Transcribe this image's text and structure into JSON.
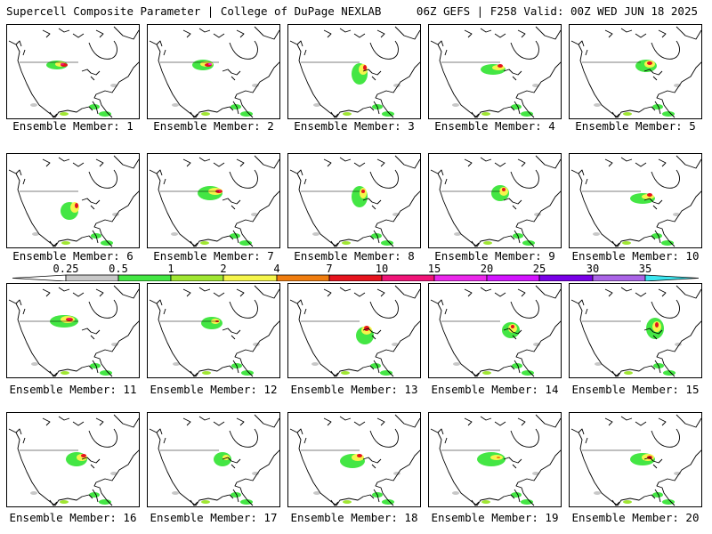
{
  "header": {
    "title": "Supercell Composite Parameter | College of DuPage NEXLAB",
    "run_info": "06Z GEFS | F258 Valid: 00Z WED JUN 18 2025"
  },
  "colorbar": {
    "ticks": [
      "0.25",
      "0.5",
      "1",
      "2",
      "4",
      "7",
      "10",
      "15",
      "20",
      "25",
      "30",
      "35"
    ],
    "colors": [
      "#c8c8c8",
      "#44e644",
      "#a0e632",
      "#f5f54b",
      "#f07d0f",
      "#e6141e",
      "#f01478",
      "#eb28eb",
      "#d214ff",
      "#7800e6",
      "#aa64e6",
      "#3ce6f0"
    ]
  },
  "members": [
    {
      "label": "Ensemble Member: 1"
    },
    {
      "label": "Ensemble Member: 2"
    },
    {
      "label": "Ensemble Member: 3"
    },
    {
      "label": "Ensemble Member: 4"
    },
    {
      "label": "Ensemble Member: 5"
    },
    {
      "label": "Ensemble Member: 6"
    },
    {
      "label": "Ensemble Member: 7"
    },
    {
      "label": "Ensemble Member: 8"
    },
    {
      "label": "Ensemble Member: 9"
    },
    {
      "label": "Ensemble Member: 10"
    },
    {
      "label": "Ensemble Member: 11"
    },
    {
      "label": "Ensemble Member: 12"
    },
    {
      "label": "Ensemble Member: 13"
    },
    {
      "label": "Ensemble Member: 14"
    },
    {
      "label": "Ensemble Member: 15"
    },
    {
      "label": "Ensemble Member: 16"
    },
    {
      "label": "Ensemble Member: 17"
    },
    {
      "label": "Ensemble Member: 18"
    },
    {
      "label": "Ensemble Member: 19"
    },
    {
      "label": "Ensemble Member: 20"
    }
  ]
}
